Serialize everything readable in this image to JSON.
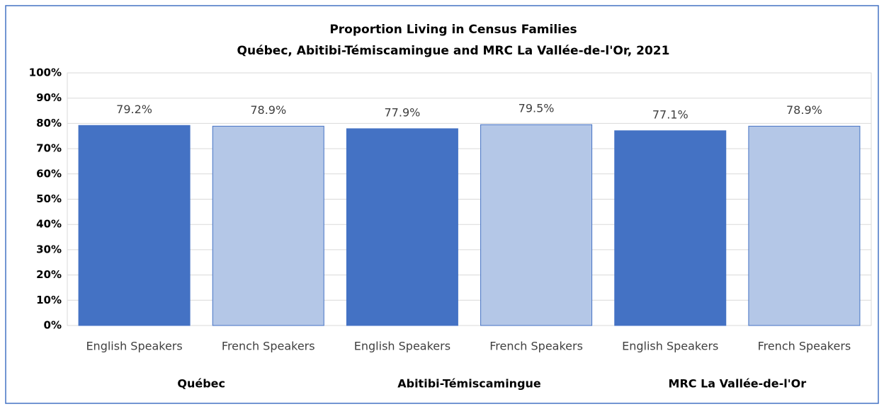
{
  "chart_data": {
    "type": "bar",
    "title": "Proportion Living in Census Families",
    "subtitle": "Québec, Abitibi-Témiscamingue  and MRC La Vallée-de-l'Or, 2021",
    "categories": [
      "English Speakers",
      "French Speakers",
      "English Speakers",
      "French Speakers",
      "English Speakers",
      "French Speakers"
    ],
    "groups": [
      "Québec",
      "Abitibi-Témiscamingue",
      "MRC La Vallée-de-l'Or"
    ],
    "values": [
      79.2,
      78.9,
      77.9,
      79.5,
      77.1,
      78.9
    ],
    "value_labels": [
      "79.2%",
      "78.9%",
      "77.9%",
      "79.5%",
      "77.1%",
      "78.9%"
    ],
    "colors": [
      "#4472c4",
      "#b4c7e7",
      "#4472c4",
      "#b4c7e7",
      "#4472c4",
      "#b4c7e7"
    ],
    "ylim": [
      0,
      100
    ],
    "yticks": [
      {
        "value": 0,
        "label": "0%"
      },
      {
        "value": 10,
        "label": "10%"
      },
      {
        "value": 20,
        "label": "20%"
      },
      {
        "value": 30,
        "label": "30%"
      },
      {
        "value": 40,
        "label": "40%"
      },
      {
        "value": 50,
        "label": "50%"
      },
      {
        "value": 60,
        "label": "60%"
      },
      {
        "value": 70,
        "label": "70%"
      },
      {
        "value": 80,
        "label": "80%"
      },
      {
        "value": 90,
        "label": "90%"
      },
      {
        "value": 100,
        "label": "100%"
      }
    ],
    "grid": true
  }
}
